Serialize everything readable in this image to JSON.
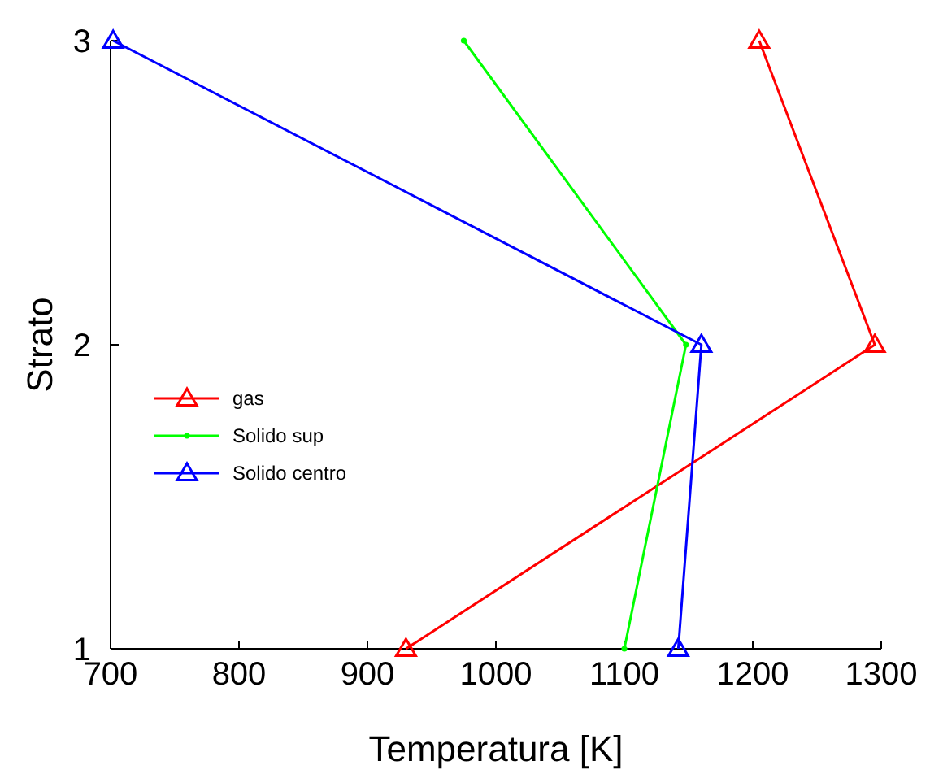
{
  "chart_data": {
    "type": "line",
    "xlabel": "Temperatura [K]",
    "ylabel": "Strato",
    "xlim": [
      700,
      1300
    ],
    "xticks": [
      700,
      800,
      900,
      1000,
      1100,
      1200,
      1300
    ],
    "ylim": [
      1,
      3
    ],
    "yticks": [
      1,
      2,
      3
    ],
    "grid": false,
    "legend": "left",
    "series": [
      {
        "name": "gas",
        "color": "#ff0000",
        "marker": "triangle",
        "x": [
          930,
          1295,
          1205
        ],
        "values": [
          1,
          2,
          3
        ]
      },
      {
        "name": "Solido sup",
        "color": "#00ff00",
        "marker": "circle",
        "x": [
          1100,
          1148,
          975
        ],
        "values": [
          1,
          2,
          3
        ]
      },
      {
        "name": "Solido centro",
        "color": "#0000ff",
        "marker": "triangle",
        "x": [
          1142,
          1160,
          702
        ],
        "values": [
          1,
          2,
          3
        ]
      }
    ]
  }
}
